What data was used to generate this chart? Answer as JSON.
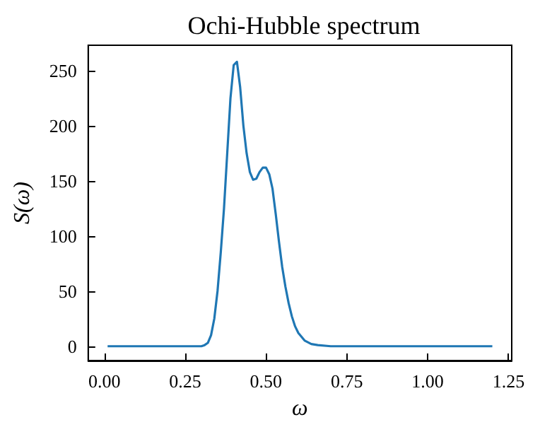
{
  "chart_data": {
    "type": "line",
    "title": "Ochi-Hubble spectrum",
    "xlabel": "ω",
    "ylabel": "S(ω)",
    "x": [
      0.01,
      0.1,
      0.2,
      0.3,
      0.31,
      0.32,
      0.33,
      0.34,
      0.35,
      0.36,
      0.37,
      0.38,
      0.39,
      0.4,
      0.41,
      0.42,
      0.43,
      0.44,
      0.45,
      0.46,
      0.47,
      0.48,
      0.49,
      0.5,
      0.51,
      0.52,
      0.53,
      0.54,
      0.55,
      0.56,
      0.57,
      0.58,
      0.59,
      0.6,
      0.62,
      0.64,
      0.66,
      0.7,
      0.75,
      0.9,
      1.2
    ],
    "series": [
      {
        "color": "#1f77b4",
        "values": [
          0,
          0,
          0,
          0,
          1,
          3,
          10,
          25,
          50,
          85,
          125,
          175,
          225,
          255,
          258,
          235,
          200,
          175,
          158,
          151,
          152,
          158,
          162,
          162,
          156,
          143,
          120,
          95,
          72,
          54,
          39,
          27,
          18,
          12,
          5,
          2,
          1,
          0,
          0,
          0,
          0
        ]
      }
    ],
    "xlim": [
      -0.05,
      1.26
    ],
    "xticks": [
      {
        "value": 0,
        "label": "0.00"
      },
      0.25,
      {
        "value": 0.5,
        "label": "0.50"
      },
      0.75,
      {
        "value": 1,
        "label": "1.00"
      },
      1.25
    ],
    "ylim": [
      -13,
      273
    ],
    "yticks": [
      0,
      50,
      100,
      150,
      200,
      250
    ],
    "grid": false,
    "marker": "none",
    "line_style": "solid"
  }
}
